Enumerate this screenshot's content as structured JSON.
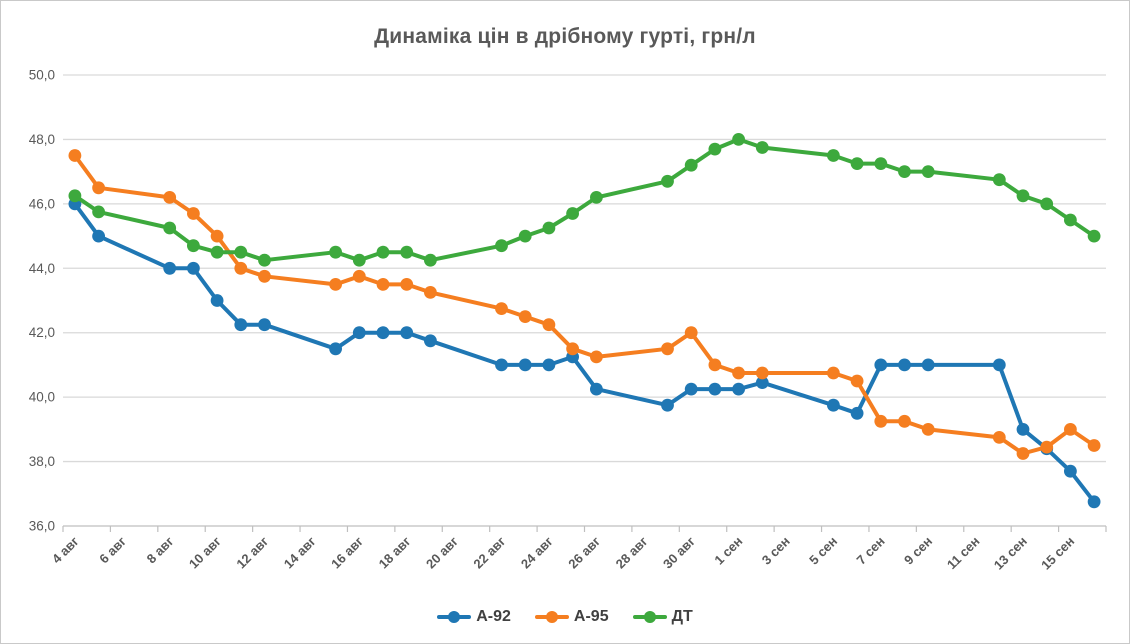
{
  "chart_data": {
    "type": "line",
    "title": "Динаміка цін в дрібному гурті, грн/л",
    "xlabel": "",
    "ylabel": "",
    "ylim": [
      36,
      50
    ],
    "y_tick_step": 2,
    "y_tick_labels": [
      "36,0",
      "38,0",
      "40,0",
      "42,0",
      "44,0",
      "46,0",
      "48,0",
      "50,0"
    ],
    "x_tick_labels": [
      "4 авг",
      "6 авг",
      "8 авг",
      "10 авг",
      "12 авг",
      "14 авг",
      "16 авг",
      "18 авг",
      "20 авг",
      "22 авг",
      "24 авг",
      "26 авг",
      "28 авг",
      "30 авг",
      "1 сен",
      "3 сен",
      "5 сен",
      "7 сен",
      "9 сен",
      "11 сен",
      "13 сен",
      "15 сен"
    ],
    "x_total_days": 44,
    "x_first_date": "4 авг",
    "x_last_date": "16 сен",
    "grid": "horizontal",
    "legend_position": "bottom",
    "note": "data points on weekdays only; day index 0 = 4 авг",
    "series": [
      {
        "id": "a92",
        "name": "А-92",
        "color": "#1F77B4",
        "days": [
          0,
          1,
          4,
          5,
          6,
          7,
          8,
          11,
          12,
          13,
          14,
          15,
          18,
          19,
          20,
          21,
          22,
          25,
          26,
          27,
          28,
          29,
          32,
          33,
          34,
          35,
          36,
          39,
          40,
          41,
          42,
          43
        ],
        "values": [
          46.0,
          45.0,
          44.0,
          44.0,
          43.0,
          42.25,
          42.25,
          41.5,
          42.0,
          42.0,
          42.0,
          41.75,
          41.0,
          41.0,
          41.0,
          41.25,
          40.25,
          39.75,
          40.25,
          40.25,
          40.25,
          40.45,
          39.75,
          39.5,
          41.0,
          41.0,
          41.0,
          41.0,
          39.0,
          38.4,
          37.7,
          36.75
        ]
      },
      {
        "id": "a95",
        "name": "А-95",
        "color": "#F57E20",
        "days": [
          0,
          1,
          4,
          5,
          6,
          7,
          8,
          11,
          12,
          13,
          14,
          15,
          18,
          19,
          20,
          21,
          22,
          25,
          26,
          27,
          28,
          29,
          32,
          33,
          34,
          35,
          36,
          39,
          40,
          41,
          42,
          43
        ],
        "values": [
          47.5,
          46.5,
          46.2,
          45.7,
          45.0,
          44.0,
          43.75,
          43.5,
          43.75,
          43.5,
          43.5,
          43.25,
          42.75,
          42.5,
          42.25,
          41.5,
          41.25,
          41.5,
          42.0,
          41.0,
          40.75,
          40.75,
          40.75,
          40.5,
          39.25,
          39.25,
          39.0,
          38.75,
          38.25,
          38.45,
          39.0,
          38.5
        ]
      },
      {
        "id": "dt",
        "name": "ДТ",
        "color": "#3DA93D",
        "days": [
          0,
          1,
          4,
          5,
          6,
          7,
          8,
          11,
          12,
          13,
          14,
          15,
          18,
          19,
          20,
          21,
          22,
          25,
          26,
          27,
          28,
          29,
          32,
          33,
          34,
          35,
          36,
          39,
          40,
          41,
          42,
          43
        ],
        "values": [
          46.25,
          45.75,
          45.25,
          44.7,
          44.5,
          44.5,
          44.25,
          44.5,
          44.25,
          44.5,
          44.5,
          44.25,
          44.7,
          45.0,
          45.25,
          45.7,
          46.2,
          46.7,
          47.2,
          47.7,
          48.0,
          47.75,
          47.5,
          47.25,
          47.25,
          47.0,
          47.0,
          46.75,
          46.25,
          46.0,
          45.5,
          45.0
        ]
      }
    ],
    "colors": {
      "gridline": "#D9D9D9",
      "axis_line": "#BFBFBF",
      "tick": "#BFBFBF",
      "axis_text": "#595959",
      "title_text": "#595959"
    }
  }
}
